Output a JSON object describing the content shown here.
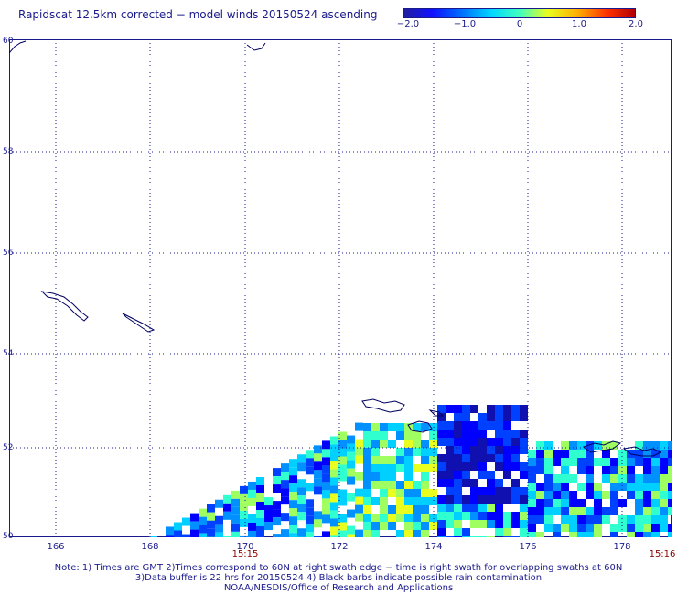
{
  "title": "Rapidscat 12.5km corrected − model winds 20150524 ascending",
  "colorbar": {
    "ticks": [
      "−2.0",
      "−1.0",
      "0",
      "1.0",
      "2.0"
    ],
    "range": [
      -2.0,
      2.0
    ]
  },
  "axes": {
    "lat_labels": [
      "60",
      "58",
      "56",
      "54",
      "52",
      "50"
    ],
    "lon_labels": [
      "166",
      "168",
      "170",
      "172",
      "174",
      "176",
      "178"
    ]
  },
  "times": {
    "left": "15:15",
    "right": "15:16"
  },
  "notes": {
    "line1": "Note: 1) Times are GMT 2)Times correspond to 60N at right swath edge − time is right swath for overlapping swaths at 60N",
    "line2": "3)Data buffer is 22 hrs for 20150524 4) Black barbs indicate possible rain contamination",
    "line3": "NOAA/NESDIS/Office of Research and Applications"
  },
  "colors": {
    "text": "#1a1a8c",
    "time": "#8b0000",
    "grid": "#1a1a8c",
    "coast": "#000060"
  }
}
